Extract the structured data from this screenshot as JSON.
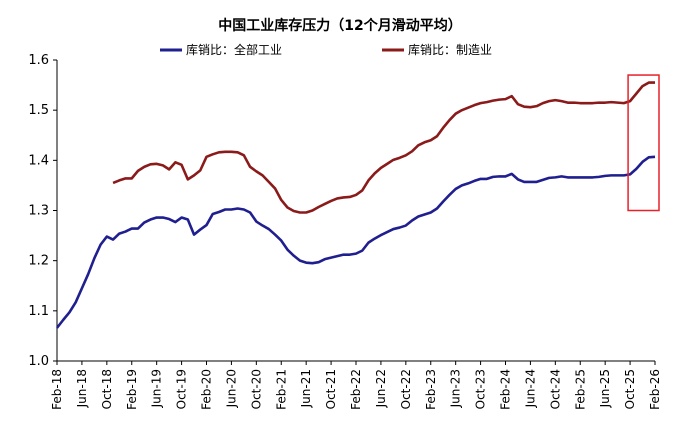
{
  "chart_data": {
    "type": "line",
    "title": "中国工业库存压力（12个月滑动平均）",
    "xlabel": "",
    "ylabel": "",
    "ylim": [
      1.0,
      1.6
    ],
    "yticks": [
      "1.0",
      "1.1",
      "1.2",
      "1.3",
      "1.4",
      "1.5",
      "1.6"
    ],
    "x_tick_labels": [
      "Feb-18",
      "Jun-18",
      "Oct-18",
      "Feb-19",
      "Jun-19",
      "Oct-19",
      "Feb-20",
      "Jun-20",
      "Oct-20",
      "Feb-21",
      "Jun-21",
      "Oct-21",
      "Feb-22",
      "Jun-22",
      "Oct-22",
      "Feb-23",
      "Jun-23",
      "Oct-23",
      "Feb-24",
      "Jun-24",
      "Oct-24",
      "Feb-25",
      "Jun-25",
      "Oct-25",
      "Feb-26"
    ],
    "legend_position": "top",
    "grid": false,
    "x": [
      "2018-02",
      "2018-03",
      "2018-04",
      "2018-05",
      "2018-06",
      "2018-07",
      "2018-08",
      "2018-09",
      "2018-10",
      "2018-11",
      "2018-12",
      "2019-01",
      "2019-02",
      "2019-03",
      "2019-04",
      "2019-05",
      "2019-06",
      "2019-07",
      "2019-08",
      "2019-09",
      "2019-10",
      "2019-11",
      "2019-12",
      "2020-01",
      "2020-02",
      "2020-03",
      "2020-04",
      "2020-05",
      "2020-06",
      "2020-07",
      "2020-08",
      "2020-09",
      "2020-10",
      "2020-11",
      "2020-12",
      "2021-01",
      "2021-02",
      "2021-03",
      "2021-04",
      "2021-05",
      "2021-06",
      "2021-07",
      "2021-08",
      "2021-09",
      "2021-10",
      "2021-11",
      "2021-12",
      "2022-01",
      "2022-02",
      "2022-03",
      "2022-04",
      "2022-05",
      "2022-06",
      "2022-07",
      "2022-08",
      "2022-09",
      "2022-10",
      "2022-11",
      "2022-12",
      "2023-01",
      "2023-02",
      "2023-03",
      "2023-04",
      "2023-05",
      "2023-06",
      "2023-07",
      "2023-08",
      "2023-09",
      "2023-10",
      "2023-11",
      "2023-12",
      "2024-01",
      "2024-02",
      "2024-03",
      "2024-04",
      "2024-05",
      "2024-06",
      "2024-07",
      "2024-08",
      "2024-09",
      "2024-10",
      "2024-11",
      "2024-12",
      "2025-01",
      "2025-02",
      "2025-03",
      "2025-04",
      "2025-05",
      "2025-06",
      "2025-07",
      "2025-08",
      "2025-09",
      "2025-10",
      "2025-11",
      "2025-12",
      "2026-01",
      "2026-02"
    ],
    "series": [
      {
        "name": "库销比：全部工业",
        "color": "#1f1f8f",
        "values": [
          1.066,
          1.082,
          1.097,
          1.117,
          1.145,
          1.173,
          1.205,
          1.232,
          1.248,
          1.242,
          1.254,
          1.258,
          1.264,
          1.264,
          1.276,
          1.282,
          1.286,
          1.286,
          1.283,
          1.277,
          1.286,
          1.282,
          1.252,
          1.262,
          1.271,
          1.293,
          1.297,
          1.302,
          1.302,
          1.304,
          1.302,
          1.296,
          1.278,
          1.27,
          1.263,
          1.252,
          1.24,
          1.222,
          1.21,
          1.2,
          1.196,
          1.195,
          1.197,
          1.203,
          1.206,
          1.209,
          1.212,
          1.212,
          1.214,
          1.22,
          1.236,
          1.244,
          1.251,
          1.257,
          1.263,
          1.266,
          1.27,
          1.28,
          1.288,
          1.292,
          1.296,
          1.304,
          1.318,
          1.331,
          1.343,
          1.35,
          1.354,
          1.359,
          1.363,
          1.363,
          1.367,
          1.368,
          1.368,
          1.373,
          1.362,
          1.357,
          1.357,
          1.357,
          1.361,
          1.365,
          1.366,
          1.368,
          1.366,
          1.366,
          1.366,
          1.366,
          1.366,
          1.367,
          1.369,
          1.37,
          1.37,
          1.37,
          1.372,
          1.383,
          1.397,
          1.406,
          1.407
        ]
      },
      {
        "name": "库销比：制造业",
        "color": "#8b1a1a",
        "values": [
          null,
          null,
          null,
          null,
          null,
          null,
          null,
          null,
          null,
          1.355,
          1.36,
          1.364,
          1.364,
          1.379,
          1.387,
          1.392,
          1.393,
          1.39,
          1.382,
          1.396,
          1.391,
          1.362,
          1.37,
          1.38,
          1.407,
          1.412,
          1.416,
          1.417,
          1.417,
          1.416,
          1.41,
          1.387,
          1.378,
          1.37,
          1.357,
          1.344,
          1.321,
          1.306,
          1.299,
          1.296,
          1.296,
          1.3,
          1.307,
          1.313,
          1.319,
          1.324,
          1.326,
          1.327,
          1.331,
          1.34,
          1.36,
          1.374,
          1.385,
          1.393,
          1.401,
          1.405,
          1.41,
          1.418,
          1.43,
          1.436,
          1.44,
          1.448,
          1.465,
          1.48,
          1.493,
          1.5,
          1.505,
          1.51,
          1.514,
          1.516,
          1.519,
          1.521,
          1.522,
          1.528,
          1.512,
          1.507,
          1.506,
          1.508,
          1.514,
          1.518,
          1.52,
          1.518,
          1.515,
          1.515,
          1.514,
          1.514,
          1.514,
          1.515,
          1.515,
          1.516,
          1.515,
          1.514,
          1.518,
          1.533,
          1.548,
          1.555,
          1.555
        ]
      }
    ],
    "highlight_box": {
      "x_from": "2025-10",
      "x_to": "2026-02",
      "y_from": 1.3,
      "y_to": 1.57,
      "color": "#e8202a"
    }
  }
}
